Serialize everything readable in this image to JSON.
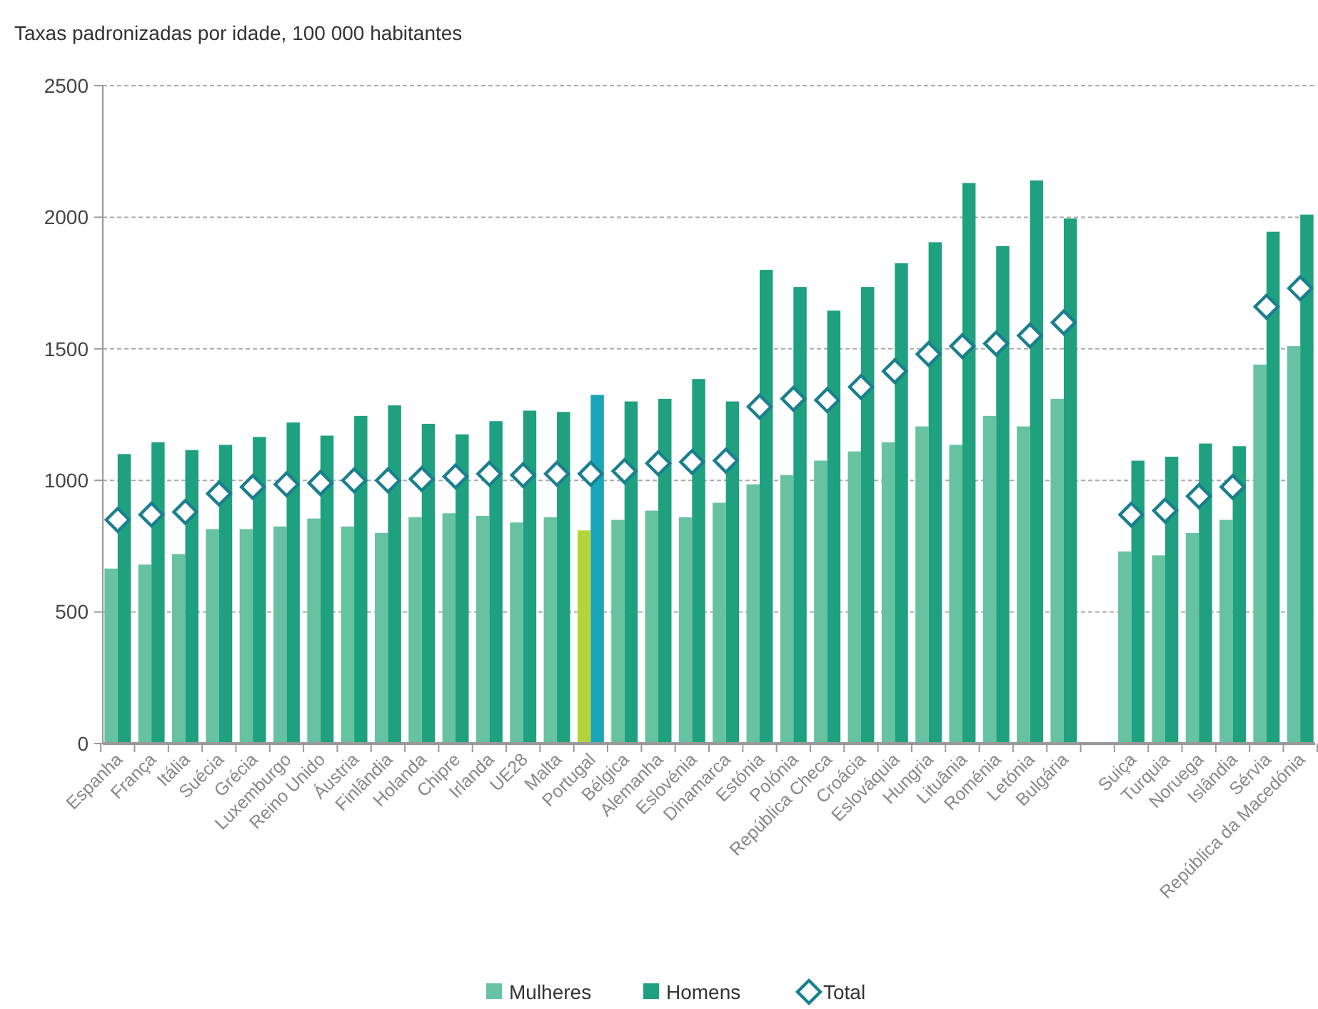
{
  "chart_data": {
    "type": "bar",
    "title": "Taxas padronizadas por idade, 100 000 habitantes",
    "categories": [
      "Espanha",
      "França",
      "Itália",
      "Suécia",
      "Grécia",
      "Luxemburgo",
      "Reino Unido",
      "Áustria",
      "Finlândia",
      "Holanda",
      "Chipre",
      "Irlanda",
      "UE28",
      "Malta",
      "Portugal",
      "Bélgica",
      "Alemanha",
      "Eslovénia",
      "Dinamarca",
      "Estónia",
      "Polónia",
      "República Checa",
      "Croácia",
      "Eslováquia",
      "Hungria",
      "Lituânia",
      "Roménia",
      "Letónia",
      "Bulgária",
      null,
      "Suiça",
      "Turquia",
      "Noruega",
      "Islândia",
      "Sérvia",
      "República da Macedónia"
    ],
    "series": [
      {
        "name": "Mulheres",
        "color": "#66c2a0",
        "colors": [
          "#66c2a0",
          "#66c2a0",
          "#66c2a0",
          "#66c2a0",
          "#66c2a0",
          "#66c2a0",
          "#66c2a0",
          "#66c2a0",
          "#66c2a0",
          "#66c2a0",
          "#66c2a0",
          "#66c2a0",
          "#66c2a0",
          "#66c2a0",
          "#b5d33a",
          "#66c2a0",
          "#66c2a0",
          "#66c2a0",
          "#66c2a0",
          "#66c2a0",
          "#66c2a0",
          "#66c2a0",
          "#66c2a0",
          "#66c2a0",
          "#66c2a0",
          "#66c2a0",
          "#66c2a0",
          "#66c2a0",
          "#66c2a0",
          null,
          "#66c2a0",
          "#66c2a0",
          "#66c2a0",
          "#66c2a0",
          "#66c2a0",
          "#66c2a0"
        ],
        "values": [
          665,
          680,
          720,
          815,
          815,
          825,
          855,
          825,
          800,
          860,
          875,
          865,
          840,
          860,
          810,
          850,
          885,
          860,
          915,
          985,
          1020,
          1075,
          1110,
          1145,
          1205,
          1135,
          1245,
          1205,
          1310,
          null,
          730,
          715,
          800,
          850,
          1440,
          1510
        ]
      },
      {
        "name": "Homens",
        "color": "#1fa07e",
        "colors": [
          "#1fa07e",
          "#1fa07e",
          "#1fa07e",
          "#1fa07e",
          "#1fa07e",
          "#1fa07e",
          "#1fa07e",
          "#1fa07e",
          "#1fa07e",
          "#1fa07e",
          "#1fa07e",
          "#1fa07e",
          "#1fa07e",
          "#1fa07e",
          "#1aa5b8",
          "#1fa07e",
          "#1fa07e",
          "#1fa07e",
          "#1fa07e",
          "#1fa07e",
          "#1fa07e",
          "#1fa07e",
          "#1fa07e",
          "#1fa07e",
          "#1fa07e",
          "#1fa07e",
          "#1fa07e",
          "#1fa07e",
          "#1fa07e",
          null,
          "#1fa07e",
          "#1fa07e",
          "#1fa07e",
          "#1fa07e",
          "#1fa07e",
          "#1fa07e"
        ],
        "values": [
          1100,
          1145,
          1115,
          1135,
          1165,
          1220,
          1170,
          1245,
          1285,
          1215,
          1175,
          1225,
          1265,
          1260,
          1325,
          1300,
          1310,
          1385,
          1300,
          1800,
          1735,
          1645,
          1735,
          1825,
          1905,
          2130,
          1890,
          2140,
          1995,
          null,
          1075,
          1090,
          1140,
          1130,
          1945,
          2010
        ]
      },
      {
        "name": "Total",
        "type": "scatter",
        "marker": "diamond",
        "color": "#1a7f8f",
        "values": [
          850,
          870,
          880,
          950,
          975,
          985,
          990,
          1000,
          1000,
          1005,
          1015,
          1025,
          1020,
          1025,
          1025,
          1035,
          1065,
          1070,
          1075,
          1280,
          1310,
          1305,
          1355,
          1415,
          1480,
          1510,
          1520,
          1550,
          1600,
          null,
          870,
          885,
          940,
          975,
          1660,
          1730
        ]
      }
    ],
    "ylim": [
      0,
      2500
    ],
    "yticks": [
      0,
      500,
      1000,
      1500,
      2000,
      2500
    ],
    "grid": "y",
    "legend": "bottom"
  }
}
